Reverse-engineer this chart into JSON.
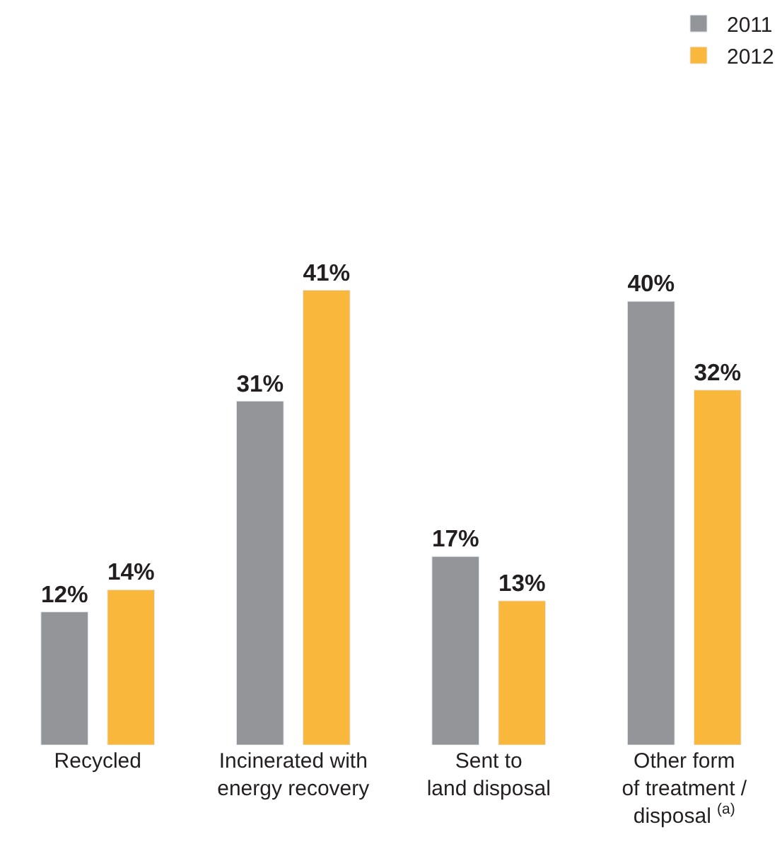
{
  "chart_data": {
    "type": "bar",
    "categories": [
      "Recycled",
      "Incinerated with\nenergy recovery",
      "Sent to\nland disposal",
      "Other form\nof treatment /\ndisposal $^{(a)}$"
    ],
    "series": [
      {
        "name": "2011",
        "color": "#939598",
        "values": [
          12,
          31,
          17,
          40
        ],
        "value_labels": [
          "12%",
          "31%",
          "17%",
          "40%"
        ]
      },
      {
        "name": "2012",
        "color": "#f9b83c",
        "values": [
          14,
          41,
          13,
          32
        ],
        "value_labels": [
          "14%",
          "41%",
          "13%",
          "32%"
        ]
      }
    ],
    "legend": "top right"
  }
}
